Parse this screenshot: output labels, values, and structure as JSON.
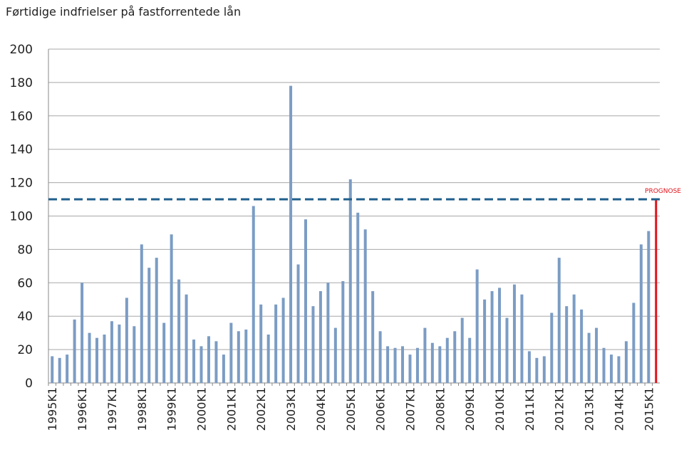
{
  "chart_data": {
    "type": "bar",
    "title": "Førtidige indfrielser på fastforrentede lån",
    "categories": [
      "1995K1",
      null,
      null,
      null,
      "1996K1",
      null,
      null,
      null,
      "1997K1",
      null,
      null,
      null,
      "1998K1",
      null,
      null,
      null,
      "1999K1",
      null,
      null,
      null,
      "2000K1",
      null,
      null,
      null,
      "2001K1",
      null,
      null,
      null,
      "2002K1",
      null,
      null,
      null,
      "2003K1",
      null,
      null,
      null,
      "2004K1",
      null,
      null,
      null,
      "2005K1",
      null,
      null,
      null,
      "2006K1",
      null,
      null,
      null,
      "2007K1",
      null,
      null,
      null,
      "2008K1",
      null,
      null,
      null,
      "2009K1",
      null,
      null,
      null,
      "2010K1",
      null,
      null,
      null,
      "2011K1",
      null,
      null,
      null,
      "2012K1",
      null,
      null,
      null,
      "2013K1",
      null,
      null,
      null,
      "2014K1",
      null,
      null,
      null,
      "2015K1",
      null
    ],
    "series": [
      {
        "color": "#7b9cc4",
        "values": [
          16,
          15,
          17,
          38,
          60,
          30,
          27,
          29,
          37,
          35,
          51,
          34,
          83,
          69,
          75,
          36,
          89,
          62,
          53,
          26,
          22,
          28,
          25,
          17,
          36,
          31,
          32,
          106,
          47,
          29,
          47,
          51,
          178,
          71,
          98,
          46,
          55,
          60,
          33,
          61,
          122,
          102,
          92,
          55,
          31,
          22,
          21,
          22,
          17,
          21,
          33,
          24,
          22,
          27,
          31,
          39,
          27,
          68,
          50,
          55,
          57,
          39,
          59,
          53,
          19,
          15,
          16,
          42,
          75,
          46,
          53,
          44,
          30,
          33,
          21,
          17,
          16,
          25,
          48,
          83,
          91,
          null
        ]
      },
      {
        "color": "#e0121a",
        "values": [
          null,
          null,
          null,
          null,
          null,
          null,
          null,
          null,
          null,
          null,
          null,
          null,
          null,
          null,
          null,
          null,
          null,
          null,
          null,
          null,
          null,
          null,
          null,
          null,
          null,
          null,
          null,
          null,
          null,
          null,
          null,
          null,
          null,
          null,
          null,
          null,
          null,
          null,
          null,
          null,
          null,
          null,
          null,
          null,
          null,
          null,
          null,
          null,
          null,
          null,
          null,
          null,
          null,
          null,
          null,
          null,
          null,
          null,
          null,
          null,
          null,
          null,
          null,
          null,
          null,
          null,
          null,
          null,
          null,
          null,
          null,
          null,
          null,
          null,
          null,
          null,
          null,
          null,
          null,
          null,
          null,
          110
        ]
      }
    ],
    "reference_line": {
      "value": 110,
      "label": "PROGNOSE",
      "color": "#1f5f8b",
      "label_color": "#e0121a",
      "style": "dashed"
    },
    "ylim": [
      0,
      200
    ],
    "yticks": [
      0,
      20,
      40,
      60,
      80,
      100,
      120,
      140,
      160,
      180,
      200
    ],
    "grid": true
  }
}
